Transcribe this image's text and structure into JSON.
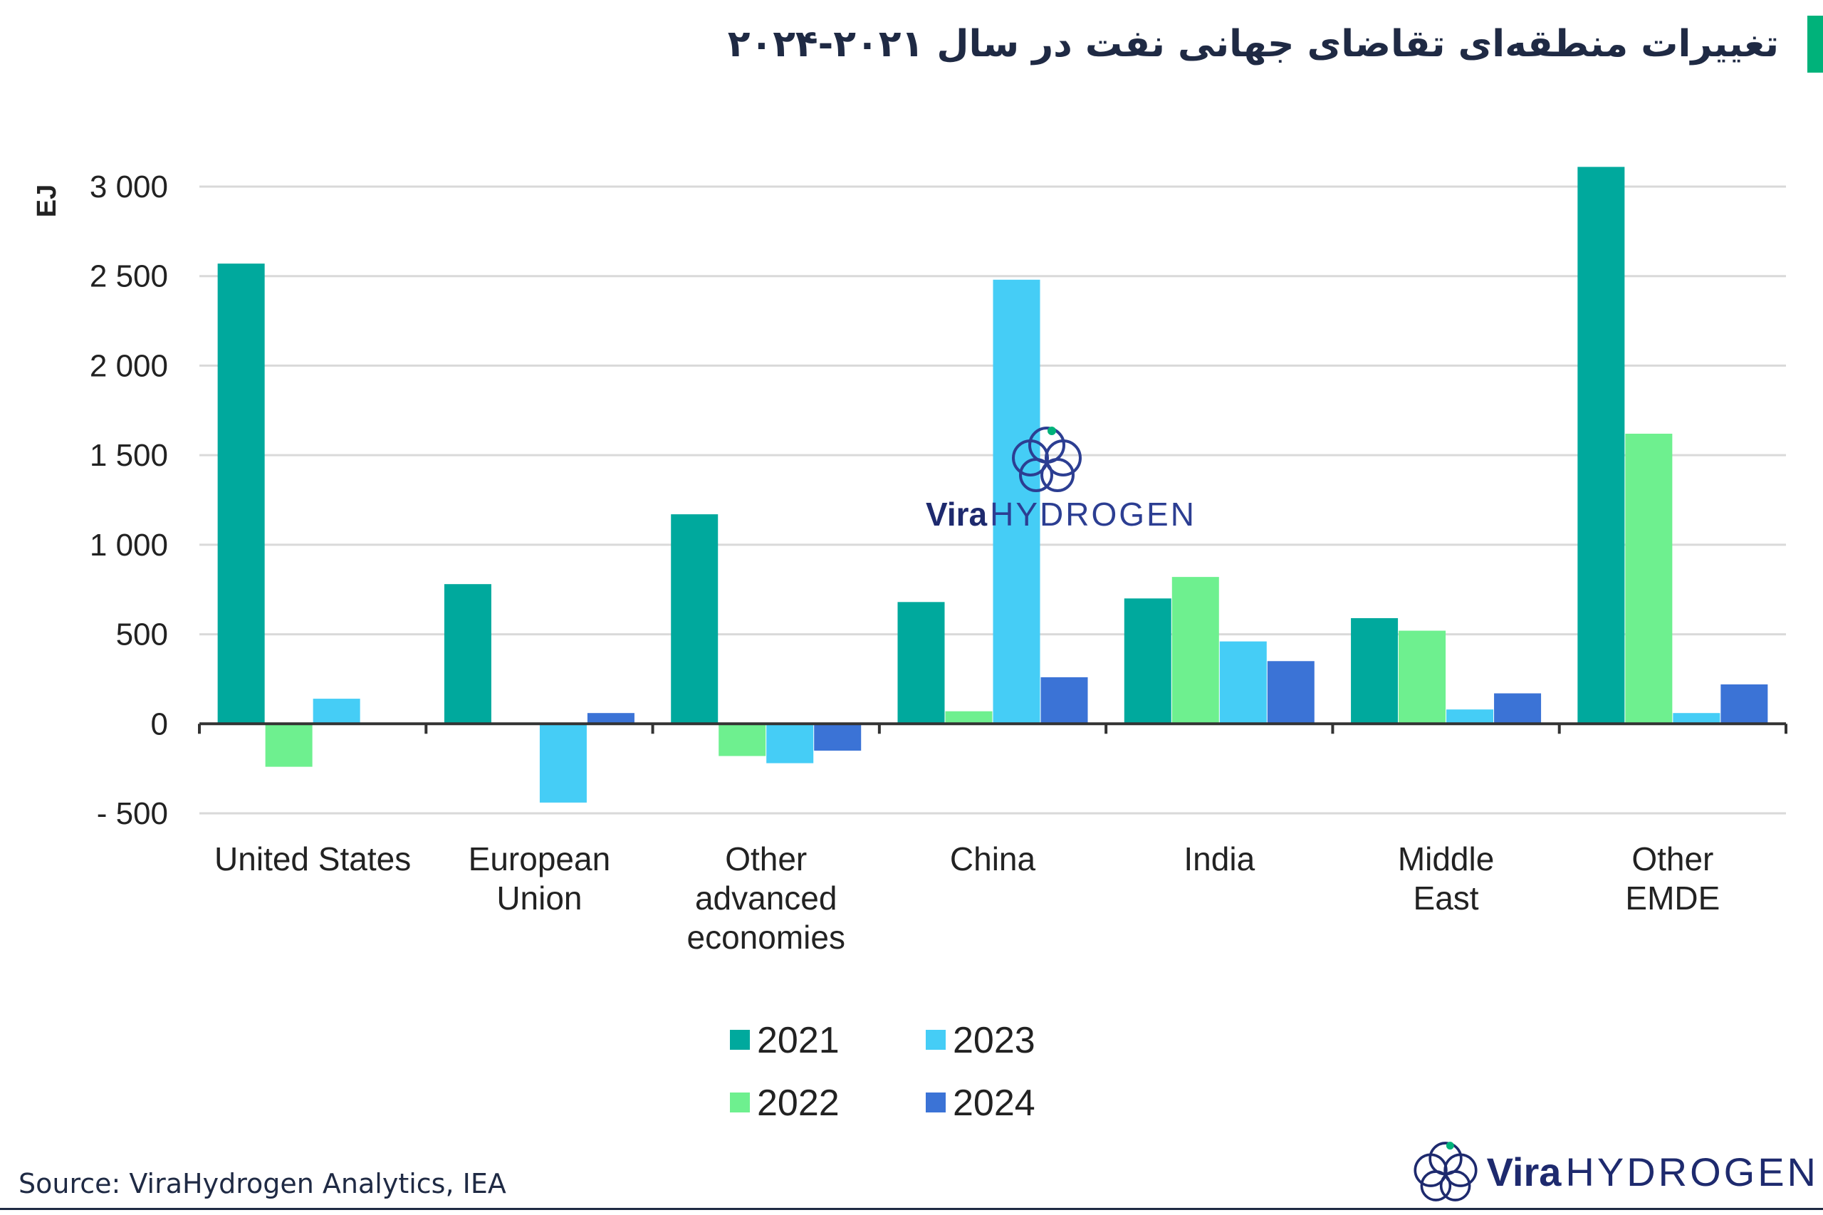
{
  "header": {
    "title": "تغییرات منطقه‌ای تقاضای جهانی نفت در سال ۲۰۲۱-۲۰۲۴"
  },
  "footer": {
    "source": "Source: ViraHydrogen Analytics, IEA"
  },
  "brand": {
    "vira": "Vira",
    "hydrogen": "HYDROGEN"
  },
  "watermark": {
    "vira": "Vira",
    "hydrogen": "HYDROGEN"
  },
  "colors": {
    "title_accent": "#00b27a",
    "series_2021": "#00a99d",
    "series_2022": "#6ef08f",
    "series_2023": "#45cdf6",
    "series_2024": "#3b73d6",
    "brand_navy": "#1e2a6e"
  },
  "chart_data": {
    "type": "bar",
    "title": "",
    "xlabel": "",
    "ylabel": "EJ",
    "ylim": [
      -500,
      3000
    ],
    "yticks": [
      -500,
      0,
      500,
      1000,
      1500,
      2000,
      2500,
      3000
    ],
    "ytick_labels": [
      "- 500",
      "0",
      "500",
      "1 000",
      "1 500",
      "2 000",
      "2 500",
      "3 000"
    ],
    "grid": true,
    "legend_position": "bottom",
    "categories": [
      [
        "United States"
      ],
      [
        "European",
        "Union"
      ],
      [
        "Other",
        "advanced",
        "economies"
      ],
      [
        "China"
      ],
      [
        "India"
      ],
      [
        "Middle",
        "East"
      ],
      [
        "Other",
        "EMDE"
      ]
    ],
    "series": [
      {
        "name": "2021",
        "color": "#00a99d",
        "values": [
          2570,
          780,
          1170,
          680,
          700,
          590,
          3110
        ]
      },
      {
        "name": "2022",
        "color": "#6ef08f",
        "values": [
          -240,
          0,
          -180,
          70,
          820,
          520,
          1620
        ]
      },
      {
        "name": "2023",
        "color": "#45cdf6",
        "values": [
          140,
          -440,
          -220,
          2480,
          460,
          80,
          60
        ]
      },
      {
        "name": "2024",
        "color": "#3b73d6",
        "values": [
          0,
          60,
          -150,
          260,
          350,
          170,
          220
        ]
      }
    ]
  }
}
